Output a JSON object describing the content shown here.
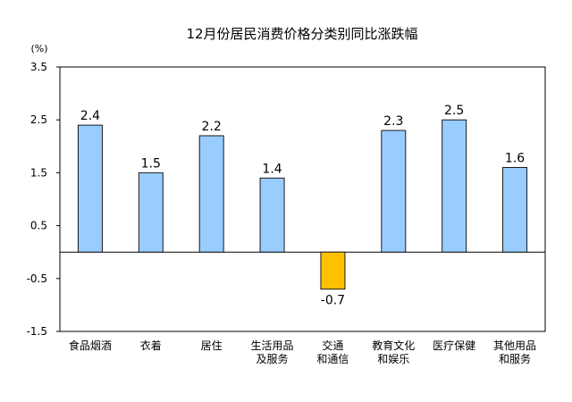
{
  "chart_data": {
    "type": "bar",
    "title": "12月份居民消费价格分类别同比涨跌幅",
    "ylabel": "(%)",
    "ylim": [
      -1.5,
      3.5
    ],
    "yticks": [
      3.5,
      2.5,
      1.5,
      0.5,
      -0.5,
      -1.5
    ],
    "ytick_labels": [
      "3.5",
      "2.5",
      "1.5",
      "0.5",
      "-0.5",
      "-1.5"
    ],
    "categories": [
      [
        "食品烟酒"
      ],
      [
        "衣着"
      ],
      [
        "居住"
      ],
      [
        "生活用品",
        "及服务"
      ],
      [
        "交通",
        "和通信"
      ],
      [
        "教育文化",
        "和娱乐"
      ],
      [
        "医疗保健"
      ],
      [
        "其他用品",
        "和服务"
      ]
    ],
    "values": [
      2.4,
      1.5,
      2.2,
      1.4,
      -0.7,
      2.3,
      2.5,
      1.6
    ],
    "value_labels": [
      "2.4",
      "1.5",
      "2.2",
      "1.4",
      "-0.7",
      "2.3",
      "2.5",
      "1.6"
    ],
    "grid": false,
    "legend": "none",
    "colors": {
      "positive_fill": "#99CCFF",
      "negative_fill": "#FFC000",
      "bar_stroke": "#1a1a1a",
      "axis": "#000000"
    }
  }
}
